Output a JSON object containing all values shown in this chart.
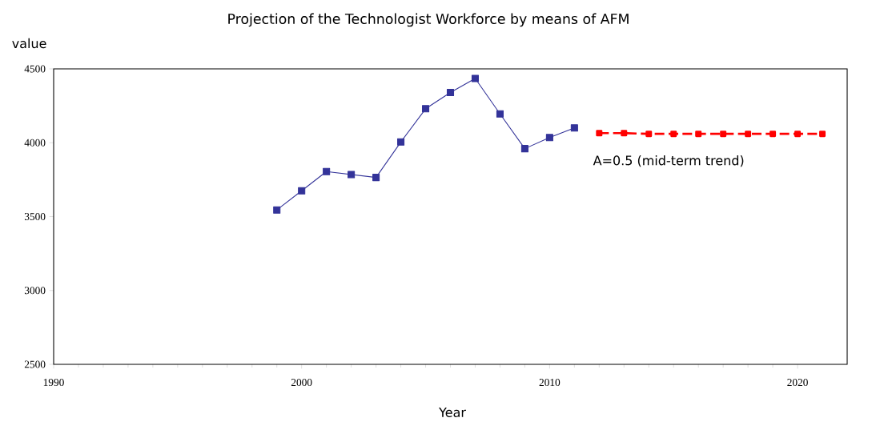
{
  "chart_data": {
    "type": "line",
    "title": "Projection of the Technologist Workforce by means of AFM",
    "xlabel": "Year",
    "ylabel": "value",
    "xlim": [
      1990,
      2022
    ],
    "xticks": [
      1990,
      2000,
      2010,
      2020
    ],
    "ylim": [
      2500,
      4500
    ],
    "yticks": [
      2500,
      3000,
      3500,
      4000,
      4500
    ],
    "grid": false,
    "series": [
      {
        "color": "#333399",
        "marker": "square",
        "line_style": "solid",
        "x": [
          1999,
          2000,
          2001,
          2002,
          2003,
          2004,
          2005,
          2006,
          2007,
          2008,
          2009,
          2010,
          2011
        ],
        "values": [
          3545,
          3675,
          3805,
          3785,
          3765,
          4005,
          4230,
          4340,
          4435,
          4195,
          3960,
          4035,
          4100
        ]
      },
      {
        "color": "#ff0000",
        "marker": "square",
        "line_style": "dashed",
        "x": [
          2012,
          2013,
          2014,
          2015,
          2016,
          2017,
          2018,
          2019,
          2020,
          2021
        ],
        "values": [
          4065,
          4065,
          4060,
          4060,
          4060,
          4060,
          4060,
          4060,
          4060,
          4060
        ]
      }
    ],
    "annotations": [
      "A=0.5 (mid-term trend)"
    ]
  }
}
